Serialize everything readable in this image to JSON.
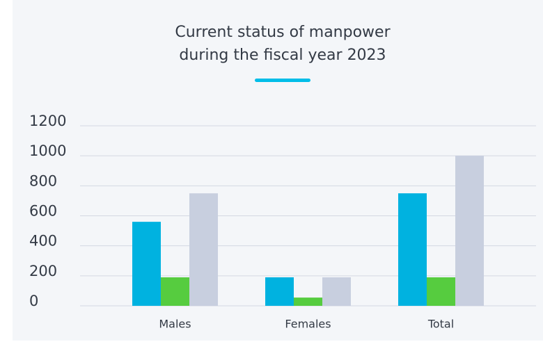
{
  "chart_data": {
    "type": "bar",
    "title": [
      "Current status of manpower",
      "during the fiscal year 2023"
    ],
    "categories": [
      "Males",
      "Females",
      "Total"
    ],
    "series": [
      {
        "color": "#00b2e0",
        "values": [
          560,
          190,
          750
        ]
      },
      {
        "color": "#56cc3f",
        "values": [
          190,
          55,
          190
        ]
      },
      {
        "color": "#c8cfdf",
        "values": [
          750,
          190,
          1000
        ]
      }
    ],
    "ylim": [
      0,
      1200
    ],
    "yticks": [
      0,
      200,
      400,
      600,
      800,
      1000,
      1200
    ],
    "grid": true
  }
}
